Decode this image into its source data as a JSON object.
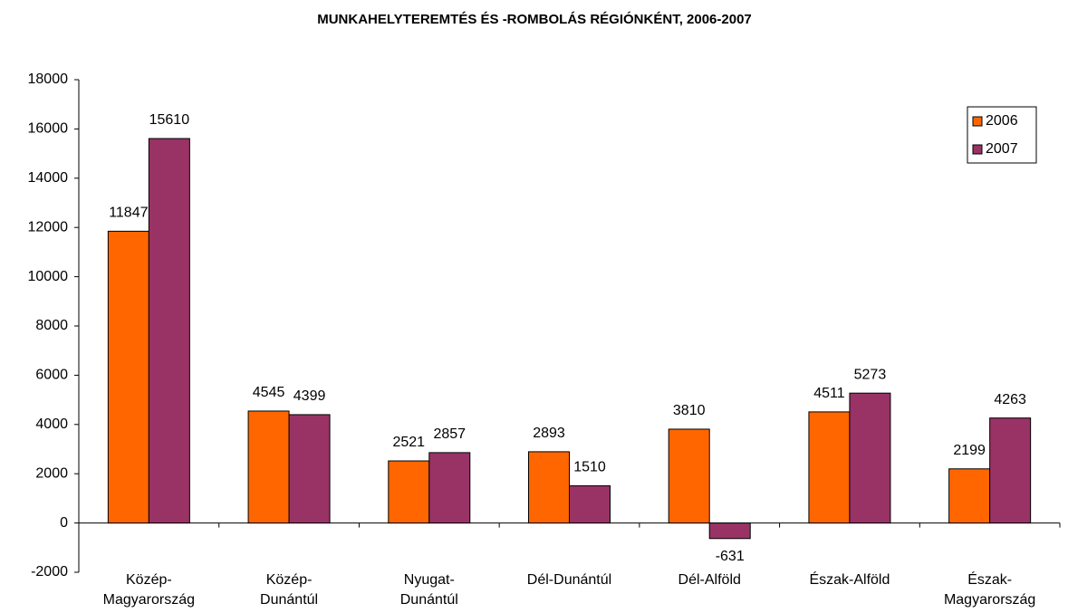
{
  "chart_data": {
    "type": "bar",
    "title": "MUNKAHELYTEREMTÉS ÉS -ROMBOLÁS RÉGIÓNKÉNT, 2006-2007",
    "categories": [
      [
        "Közép-",
        "Magyarország"
      ],
      [
        "Közép-",
        "Dunántúl"
      ],
      [
        "Nyugat-",
        "Dunántúl"
      ],
      [
        "Dél-Dunántúl"
      ],
      [
        "Dél-Alföld"
      ],
      [
        "Észak-Alföld"
      ],
      [
        "Észak-",
        "Magyarország"
      ]
    ],
    "series": [
      {
        "name": "2006",
        "color": "#ff6600",
        "values": [
          11847,
          4545,
          2521,
          2893,
          3810,
          4511,
          2199
        ]
      },
      {
        "name": "2007",
        "color": "#993366",
        "values": [
          15610,
          4399,
          2857,
          1510,
          -631,
          5273,
          4263
        ]
      }
    ],
    "ylim": [
      -2000,
      18000
    ],
    "yticks": [
      -2000,
      0,
      2000,
      4000,
      6000,
      8000,
      10000,
      12000,
      14000,
      16000,
      18000
    ],
    "grid": false,
    "legend": "upper right"
  }
}
